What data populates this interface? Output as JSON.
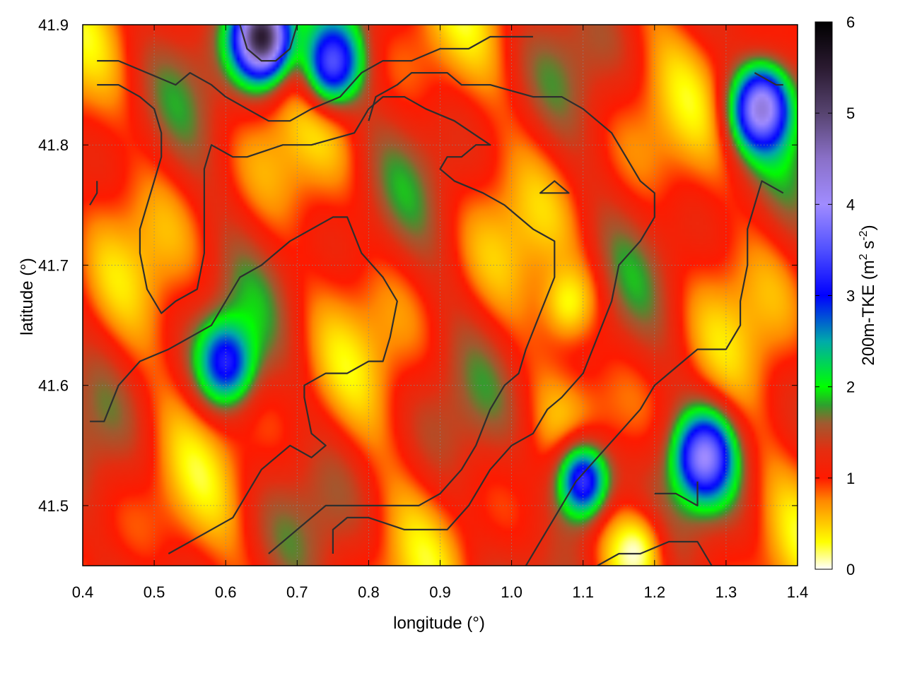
{
  "chart_data": {
    "type": "heatmap",
    "title": "",
    "xlabel": "longitude (°)",
    "ylabel": "latitude (°)",
    "xlim": [
      0.4,
      1.4
    ],
    "ylim": [
      41.45,
      41.9
    ],
    "x_ticks": [
      0.4,
      0.5,
      0.6,
      0.7,
      0.8,
      0.9,
      1.0,
      1.1,
      1.2,
      1.3,
      1.4
    ],
    "x_tick_labels": [
      "0.4",
      "0.5",
      "0.6",
      "0.7",
      "0.8",
      "0.9",
      "1.0",
      "1.1",
      "1.2",
      "1.3",
      "1.4"
    ],
    "y_ticks": [
      41.5,
      41.6,
      41.7,
      41.8,
      41.9
    ],
    "y_tick_labels": [
      "41.5",
      "41.6",
      "41.7",
      "41.8",
      "41.9"
    ],
    "grid": true,
    "colorbar": {
      "label_main": "200m-TKE (m",
      "label_sup1": "2",
      "label_mid": " s",
      "label_sup2": "-2",
      "label_end": ")",
      "range": [
        0,
        6
      ],
      "ticks": [
        0,
        1,
        2,
        3,
        4,
        5,
        6
      ],
      "tick_labels": [
        "0",
        "1",
        "2",
        "3",
        "4",
        "5",
        "6"
      ],
      "colorscale": [
        [
          0.0,
          "#ffffff"
        ],
        [
          0.3,
          "#ffff00"
        ],
        [
          0.75,
          "#ff8800"
        ],
        [
          1.0,
          "#ff1a00"
        ],
        [
          1.3,
          "#e52d10"
        ],
        [
          1.6,
          "#a05a30"
        ],
        [
          1.8,
          "#2ea02e"
        ],
        [
          2.0,
          "#00ff00"
        ],
        [
          2.5,
          "#00aaaa"
        ],
        [
          3.0,
          "#0000ff"
        ],
        [
          3.5,
          "#5050ff"
        ],
        [
          4.0,
          "#a08cff"
        ],
        [
          4.5,
          "#8a70c8"
        ],
        [
          5.0,
          "#574470"
        ],
        [
          5.5,
          "#2a1a30"
        ],
        [
          6.0,
          "#000000"
        ]
      ]
    },
    "field_features": [
      {
        "name": "high-tke-ne-corner",
        "lon": 1.35,
        "lat": 41.83,
        "value": 4.3
      },
      {
        "name": "high-tke-se-cluster",
        "lon": 1.27,
        "lat": 41.54,
        "value": 4.0
      },
      {
        "name": "high-tke-se-cluster-2",
        "lon": 1.1,
        "lat": 41.52,
        "value": 3.3
      },
      {
        "name": "high-tke-n-edge",
        "lon": 0.75,
        "lat": 41.87,
        "value": 3.5
      },
      {
        "name": "high-tke-n-edge-2",
        "lon": 0.65,
        "lat": 41.89,
        "value": 5.5
      },
      {
        "name": "high-tke-w-spot",
        "lon": 0.6,
        "lat": 41.62,
        "value": 3.2
      },
      {
        "name": "low-tke-center",
        "lon": 1.08,
        "lat": 41.67,
        "value": 0.3
      },
      {
        "name": "low-tke-s-edge",
        "lon": 1.17,
        "lat": 41.46,
        "value": 0.05
      }
    ],
    "contours": [
      {
        "points": [
          [
            0.42,
            41.85
          ],
          [
            0.45,
            41.85
          ],
          [
            0.48,
            41.84
          ],
          [
            0.5,
            41.83
          ],
          [
            0.51,
            41.81
          ],
          [
            0.51,
            41.79
          ],
          [
            0.5,
            41.77
          ],
          [
            0.49,
            41.75
          ],
          [
            0.48,
            41.73
          ],
          [
            0.48,
            41.71
          ],
          [
            0.49,
            41.68
          ],
          [
            0.51,
            41.66
          ],
          [
            0.53,
            41.67
          ],
          [
            0.56,
            41.68
          ],
          [
            0.57,
            41.71
          ],
          [
            0.57,
            41.75
          ],
          [
            0.57,
            41.78
          ],
          [
            0.58,
            41.8
          ],
          [
            0.61,
            41.79
          ],
          [
            0.63,
            41.79
          ],
          [
            0.68,
            41.8
          ],
          [
            0.72,
            41.8
          ],
          [
            0.78,
            41.81
          ],
          [
            0.8,
            41.83
          ],
          [
            0.82,
            41.84
          ],
          [
            0.85,
            41.84
          ],
          [
            0.88,
            41.83
          ],
          [
            0.92,
            41.82
          ],
          [
            0.97,
            41.8
          ],
          [
            0.95,
            41.8
          ],
          [
            0.93,
            41.79
          ],
          [
            0.91,
            41.79
          ],
          [
            0.9,
            41.78
          ],
          [
            0.92,
            41.77
          ],
          [
            0.96,
            41.76
          ],
          [
            0.99,
            41.75
          ],
          [
            1.01,
            41.74
          ],
          [
            1.03,
            41.73
          ],
          [
            1.06,
            41.72
          ],
          [
            1.06,
            41.69
          ],
          [
            1.04,
            41.66
          ],
          [
            1.02,
            41.63
          ],
          [
            1.01,
            41.61
          ],
          [
            0.99,
            41.6
          ],
          [
            0.97,
            41.58
          ],
          [
            0.95,
            41.55
          ],
          [
            0.93,
            41.53
          ],
          [
            0.9,
            41.51
          ],
          [
            0.87,
            41.5
          ],
          [
            0.84,
            41.5
          ],
          [
            0.8,
            41.5
          ],
          [
            0.77,
            41.5
          ],
          [
            0.74,
            41.5
          ],
          [
            0.72,
            41.49
          ],
          [
            0.7,
            41.48
          ],
          [
            0.68,
            41.47
          ],
          [
            0.66,
            41.46
          ]
        ]
      },
      {
        "points": [
          [
            0.41,
            41.57
          ],
          [
            0.43,
            41.57
          ],
          [
            0.45,
            41.6
          ],
          [
            0.48,
            41.62
          ],
          [
            0.52,
            41.63
          ],
          [
            0.55,
            41.64
          ],
          [
            0.58,
            41.65
          ],
          [
            0.6,
            41.67
          ],
          [
            0.62,
            41.69
          ],
          [
            0.65,
            41.7
          ],
          [
            0.69,
            41.72
          ],
          [
            0.72,
            41.73
          ],
          [
            0.75,
            41.74
          ],
          [
            0.77,
            41.74
          ],
          [
            0.79,
            41.71
          ],
          [
            0.82,
            41.69
          ],
          [
            0.84,
            41.67
          ],
          [
            0.83,
            41.64
          ],
          [
            0.82,
            41.62
          ],
          [
            0.8,
            41.62
          ],
          [
            0.77,
            41.61
          ],
          [
            0.74,
            41.61
          ],
          [
            0.71,
            41.6
          ],
          [
            0.71,
            41.59
          ],
          [
            0.72,
            41.56
          ],
          [
            0.74,
            41.55
          ],
          [
            0.72,
            41.54
          ],
          [
            0.69,
            41.55
          ],
          [
            0.67,
            41.54
          ],
          [
            0.65,
            41.53
          ],
          [
            0.62,
            41.5
          ],
          [
            0.61,
            41.49
          ],
          [
            0.58,
            41.48
          ],
          [
            0.55,
            41.47
          ],
          [
            0.52,
            41.46
          ]
        ]
      },
      {
        "points": [
          [
            0.75,
            41.46
          ],
          [
            0.75,
            41.48
          ],
          [
            0.77,
            41.49
          ],
          [
            0.8,
            41.49
          ],
          [
            0.85,
            41.48
          ],
          [
            0.89,
            41.48
          ],
          [
            0.91,
            41.48
          ],
          [
            0.94,
            41.5
          ],
          [
            0.97,
            41.53
          ],
          [
            1.0,
            41.55
          ],
          [
            1.03,
            41.56
          ],
          [
            1.05,
            41.58
          ],
          [
            1.07,
            41.59
          ],
          [
            1.1,
            41.61
          ],
          [
            1.12,
            41.64
          ],
          [
            1.14,
            41.67
          ],
          [
            1.15,
            41.7
          ],
          [
            1.18,
            41.72
          ],
          [
            1.2,
            41.74
          ],
          [
            1.2,
            41.76
          ],
          [
            1.18,
            41.77
          ],
          [
            1.16,
            41.79
          ],
          [
            1.14,
            41.81
          ],
          [
            1.12,
            41.82
          ],
          [
            1.1,
            41.83
          ],
          [
            1.07,
            41.84
          ],
          [
            1.03,
            41.84
          ],
          [
            0.97,
            41.85
          ],
          [
            0.93,
            41.85
          ],
          [
            0.91,
            41.86
          ],
          [
            0.88,
            41.86
          ],
          [
            0.86,
            41.86
          ],
          [
            0.84,
            41.85
          ],
          [
            0.81,
            41.84
          ],
          [
            0.8,
            41.82
          ]
        ]
      },
      {
        "points": [
          [
            1.02,
            41.45
          ],
          [
            1.04,
            41.47
          ],
          [
            1.06,
            41.49
          ],
          [
            1.09,
            41.52
          ],
          [
            1.12,
            41.54
          ],
          [
            1.15,
            41.56
          ],
          [
            1.18,
            41.58
          ],
          [
            1.2,
            41.6
          ],
          [
            1.22,
            41.61
          ],
          [
            1.24,
            41.62
          ],
          [
            1.26,
            41.63
          ],
          [
            1.3,
            41.63
          ],
          [
            1.32,
            41.65
          ],
          [
            1.32,
            41.67
          ],
          [
            1.33,
            41.7
          ],
          [
            1.33,
            41.73
          ],
          [
            1.34,
            41.75
          ],
          [
            1.35,
            41.77
          ],
          [
            1.38,
            41.76
          ]
        ]
      },
      {
        "points": [
          [
            1.12,
            41.45
          ],
          [
            1.15,
            41.46
          ],
          [
            1.18,
            41.46
          ],
          [
            1.22,
            41.47
          ],
          [
            1.26,
            41.47
          ],
          [
            1.28,
            41.45
          ]
        ]
      },
      {
        "points": [
          [
            1.2,
            41.51
          ],
          [
            1.23,
            41.51
          ],
          [
            1.26,
            41.5
          ],
          [
            1.26,
            41.52
          ]
        ]
      },
      {
        "points": [
          [
            1.06,
            41.76
          ],
          [
            1.08,
            41.76
          ],
          [
            1.06,
            41.77
          ],
          [
            1.04,
            41.76
          ],
          [
            1.06,
            41.76
          ]
        ]
      },
      {
        "points": [
          [
            0.42,
            41.87
          ],
          [
            0.45,
            41.87
          ],
          [
            0.49,
            41.86
          ],
          [
            0.53,
            41.85
          ],
          [
            0.55,
            41.86
          ],
          [
            0.58,
            41.85
          ],
          [
            0.6,
            41.84
          ],
          [
            0.63,
            41.83
          ],
          [
            0.66,
            41.82
          ],
          [
            0.69,
            41.82
          ],
          [
            0.72,
            41.83
          ],
          [
            0.76,
            41.84
          ],
          [
            0.79,
            41.86
          ],
          [
            0.82,
            41.87
          ],
          [
            0.86,
            41.87
          ],
          [
            0.9,
            41.88
          ],
          [
            0.94,
            41.88
          ],
          [
            0.97,
            41.89
          ],
          [
            1.0,
            41.89
          ],
          [
            1.03,
            41.89
          ]
        ]
      },
      {
        "points": [
          [
            0.62,
            41.9
          ],
          [
            0.63,
            41.88
          ],
          [
            0.65,
            41.87
          ],
          [
            0.67,
            41.87
          ],
          [
            0.69,
            41.88
          ],
          [
            0.7,
            41.9
          ]
        ]
      },
      {
        "points": [
          [
            1.34,
            41.86
          ],
          [
            1.37,
            41.85
          ],
          [
            1.38,
            41.85
          ]
        ]
      },
      {
        "points": [
          [
            0.42,
            41.77
          ],
          [
            0.42,
            41.76
          ],
          [
            0.41,
            41.75
          ]
        ]
      }
    ]
  }
}
